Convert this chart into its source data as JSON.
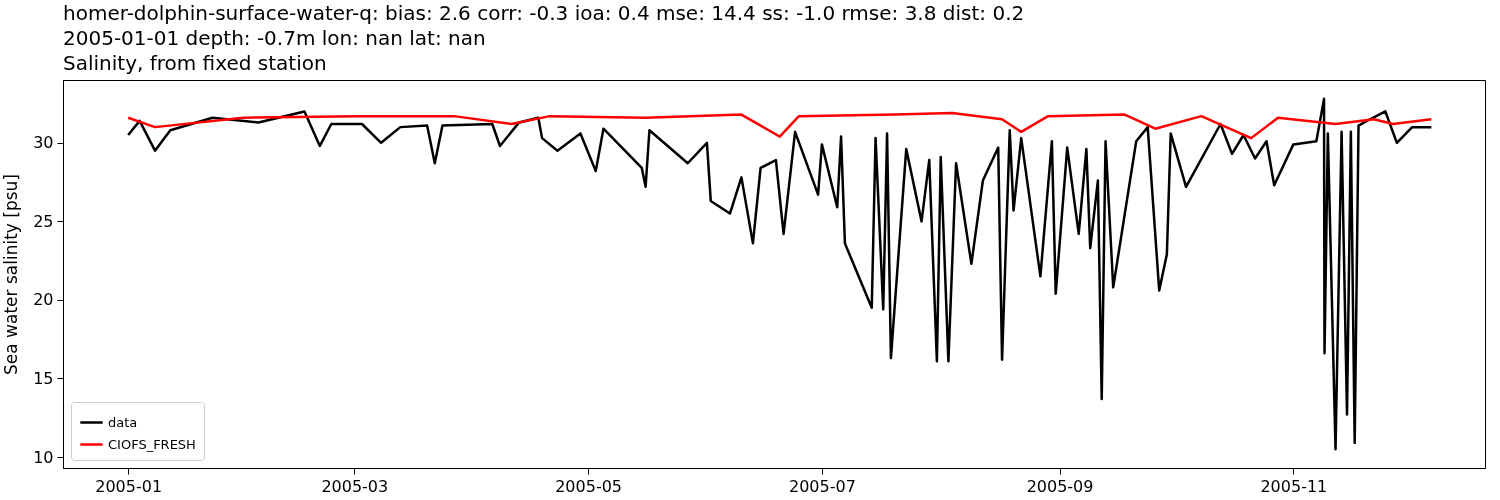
{
  "chart_data": {
    "type": "line",
    "title": [
      "homer-dolphin-surface-water-q: bias: 2.6  corr: -0.3  ioa: 0.4  mse: 14.4  ss: -1.0  rmse: 3.8  dist: 0.2",
      "2005-01-01 depth: -0.7m lon: nan lat: nan",
      "Salinity, from fixed station"
    ],
    "ylabel": "Sea water salinity [psu]",
    "xlim": [
      "2004-12-15",
      "2005-12-21"
    ],
    "xticks": [
      {
        "value": "2005-01-01",
        "label": "2005-01"
      },
      {
        "value": "2005-03-01",
        "label": "2005-03"
      },
      {
        "value": "2005-05-01",
        "label": "2005-05"
      },
      {
        "value": "2005-07-01",
        "label": "2005-07"
      },
      {
        "value": "2005-09-01",
        "label": "2005-09"
      },
      {
        "value": "2005-11-01",
        "label": "2005-11"
      }
    ],
    "ylim": [
      9.3,
      34
    ],
    "yticks": [
      10,
      15,
      20,
      25,
      30
    ],
    "grid": false,
    "legend": "bottom left",
    "line_style": "solid",
    "series": [
      {
        "name": "data",
        "color": "#000000",
        "x": [
          "2005-01-01",
          "2005-01-04",
          "2005-01-08",
          "2005-01-12",
          "2005-01-23",
          "2005-02-04",
          "2005-02-16",
          "2005-02-20",
          "2005-02-23",
          "2005-03-03",
          "2005-03-08",
          "2005-03-13",
          "2005-03-20",
          "2005-03-22",
          "2005-03-24",
          "2005-04-06",
          "2005-04-08",
          "2005-04-13",
          "2005-04-18",
          "2005-04-19",
          "2005-04-23",
          "2005-04-29",
          "2005-05-03",
          "2005-05-05",
          "2005-05-15",
          "2005-05-16",
          "2005-05-17",
          "2005-05-27",
          "2005-06-01",
          "2005-06-02",
          "2005-06-07",
          "2005-06-10",
          "2005-06-13",
          "2005-06-15",
          "2005-06-19",
          "2005-06-21",
          "2005-06-24",
          "2005-06-30",
          "2005-07-01",
          "2005-07-05",
          "2005-07-06",
          "2005-07-07",
          "2005-07-14",
          "2005-07-15",
          "2005-07-17",
          "2005-07-18",
          "2005-07-19",
          "2005-07-23",
          "2005-07-27",
          "2005-07-29",
          "2005-07-31",
          "2005-08-01",
          "2005-08-03",
          "2005-08-05",
          "2005-08-09",
          "2005-08-12",
          "2005-08-16",
          "2005-08-17",
          "2005-08-19",
          "2005-08-20",
          "2005-08-22",
          "2005-08-27",
          "2005-08-30",
          "2005-08-31",
          "2005-09-03",
          "2005-09-06",
          "2005-09-08",
          "2005-09-09",
          "2005-09-11",
          "2005-09-12",
          "2005-09-13",
          "2005-09-15",
          "2005-09-21",
          "2005-09-24",
          "2005-09-27",
          "2005-09-29",
          "2005-09-30",
          "2005-10-04",
          "2005-10-13",
          "2005-10-16",
          "2005-10-19",
          "2005-10-22",
          "2005-10-25",
          "2005-10-27",
          "2005-11-01",
          "2005-11-07",
          "2005-11-09T00:00",
          "2005-11-09T03:00",
          "2005-11-10",
          "2005-11-12",
          "2005-11-13T14:00",
          "2005-11-15",
          "2005-11-16",
          "2005-11-17",
          "2005-11-18",
          "2005-11-21",
          "2005-11-25",
          "2005-11-28",
          "2005-12-02",
          "2005-12-07"
        ],
        "values": [
          30.5,
          31.4,
          29.5,
          30.8,
          31.6,
          31.3,
          32.0,
          29.8,
          31.2,
          31.2,
          30.0,
          31.0,
          31.1,
          28.7,
          31.1,
          31.2,
          29.8,
          31.3,
          31.6,
          30.3,
          29.5,
          30.6,
          28.2,
          30.9,
          28.4,
          27.2,
          30.8,
          28.7,
          30.0,
          26.3,
          25.5,
          27.8,
          23.6,
          28.4,
          28.9,
          24.2,
          30.7,
          26.7,
          29.9,
          25.9,
          30.4,
          23.6,
          19.5,
          30.3,
          19.4,
          30.6,
          16.3,
          29.6,
          25.0,
          28.9,
          16.1,
          29.1,
          16.1,
          28.7,
          22.3,
          27.6,
          29.7,
          16.2,
          30.8,
          25.7,
          30.3,
          21.5,
          30.1,
          20.4,
          29.7,
          24.2,
          29.6,
          23.3,
          27.6,
          13.7,
          30.1,
          20.8,
          30.1,
          31.0,
          20.6,
          22.9,
          30.6,
          27.2,
          31.2,
          29.3,
          30.5,
          29.0,
          30.1,
          27.3,
          29.9,
          30.1,
          32.8,
          16.6,
          30.6,
          10.5,
          30.7,
          12.7,
          30.7,
          10.9,
          31.1,
          31.5,
          32.0,
          30.0,
          31.0,
          31.0
        ]
      },
      {
        "name": "CIOFS_FRESH",
        "color": "#ff0000",
        "x": [
          "2005-01-01",
          "2005-01-08",
          "2005-01-31",
          "2005-03-02",
          "2005-03-27",
          "2005-04-11",
          "2005-04-21",
          "2005-05-16",
          "2005-06-10",
          "2005-06-20",
          "2005-06-25",
          "2005-07-20",
          "2005-08-04",
          "2005-08-17",
          "2005-08-22",
          "2005-08-29",
          "2005-09-18",
          "2005-09-26",
          "2005-10-08",
          "2005-10-21",
          "2005-10-28",
          "2005-11-12",
          "2005-11-22",
          "2005-11-27",
          "2005-12-07"
        ],
        "values": [
          31.6,
          31.0,
          31.6,
          31.7,
          31.7,
          31.2,
          31.7,
          31.6,
          31.8,
          30.4,
          31.7,
          31.8,
          31.9,
          31.5,
          30.7,
          31.7,
          31.8,
          30.9,
          31.7,
          30.3,
          31.6,
          31.2,
          31.5,
          31.2,
          31.5
        ]
      }
    ]
  }
}
